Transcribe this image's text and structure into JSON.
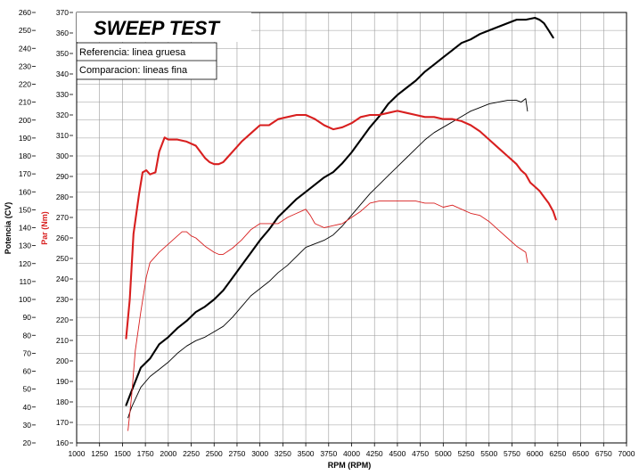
{
  "chart_data": {
    "type": "line",
    "title": "SWEEP TEST",
    "xlabel": "RPM (RPM)",
    "ylabel_left": "Potencia (CV)",
    "ylabel_right": "Par (Nm)",
    "xlim": [
      1000,
      7000
    ],
    "xticks": [
      1000,
      1250,
      1500,
      1750,
      2000,
      2250,
      2500,
      2750,
      3000,
      3250,
      3500,
      3750,
      4000,
      4250,
      4500,
      4750,
      5000,
      5250,
      5500,
      5750,
      6000,
      6250,
      6500,
      6750,
      7000
    ],
    "ylim_power": [
      20,
      260
    ],
    "yticks_power": [
      20,
      30,
      40,
      50,
      60,
      70,
      80,
      90,
      100,
      110,
      120,
      130,
      140,
      150,
      160,
      170,
      180,
      190,
      200,
      210,
      220,
      230,
      240,
      250,
      260
    ],
    "ylim_torque": [
      160,
      370
    ],
    "yticks_torque": [
      160,
      170,
      180,
      190,
      200,
      210,
      220,
      230,
      240,
      250,
      260,
      270,
      280,
      290,
      300,
      310,
      320,
      330,
      340,
      350,
      360,
      370
    ],
    "legend": [
      "Referencia: linea gruesa",
      "Comparacion: lineas fina"
    ],
    "grid": true,
    "colors": {
      "power": "#000000",
      "torque": "#d81f1f"
    },
    "series": [
      {
        "axis": "power",
        "weight": "thick",
        "x": [
          1540,
          1600,
          1700,
          1800,
          1900,
          2000,
          2100,
          2200,
          2300,
          2400,
          2500,
          2600,
          2700,
          2800,
          2900,
          3000,
          3100,
          3200,
          3300,
          3400,
          3500,
          3600,
          3700,
          3800,
          3900,
          4000,
          4100,
          4200,
          4300,
          4400,
          4500,
          4600,
          4700,
          4800,
          4900,
          5000,
          5100,
          5200,
          5300,
          5400,
          5500,
          5600,
          5700,
          5800,
          5900,
          6000,
          6050,
          6100,
          6150,
          6200
        ],
        "values": [
          41,
          49,
          62,
          67,
          75,
          79,
          84,
          88,
          93,
          96,
          100,
          105,
          112,
          119,
          126,
          133,
          139,
          146,
          151,
          156,
          160,
          164,
          168,
          171,
          176,
          182,
          189,
          196,
          202,
          209,
          214,
          218,
          222,
          227,
          231,
          235,
          239,
          243,
          245,
          248,
          250,
          252,
          254,
          256,
          256,
          257,
          256,
          254,
          250,
          246
        ]
      },
      {
        "axis": "power",
        "weight": "thin",
        "x": [
          1560,
          1600,
          1700,
          1800,
          1900,
          2000,
          2100,
          2200,
          2300,
          2400,
          2500,
          2600,
          2700,
          2800,
          2900,
          3000,
          3100,
          3200,
          3300,
          3400,
          3500,
          3600,
          3700,
          3800,
          3900,
          4000,
          4100,
          4200,
          4300,
          4400,
          4500,
          4600,
          4700,
          4800,
          4900,
          5000,
          5100,
          5200,
          5300,
          5400,
          5500,
          5600,
          5700,
          5800,
          5850,
          5900,
          5920
        ],
        "values": [
          34,
          40,
          51,
          57,
          61,
          65,
          70,
          74,
          77,
          79,
          82,
          85,
          90,
          96,
          102,
          106,
          110,
          115,
          119,
          124,
          129,
          131,
          133,
          136,
          141,
          147,
          153,
          159,
          164,
          169,
          174,
          179,
          184,
          189,
          193,
          196,
          199,
          202,
          205,
          207,
          209,
          210,
          211,
          211,
          210,
          212,
          205
        ]
      },
      {
        "axis": "torque",
        "weight": "thick",
        "x": [
          1540,
          1580,
          1620,
          1680,
          1720,
          1760,
          1800,
          1860,
          1900,
          1960,
          2000,
          2100,
          2200,
          2300,
          2400,
          2450,
          2500,
          2550,
          2600,
          2700,
          2800,
          2900,
          3000,
          3100,
          3200,
          3300,
          3400,
          3500,
          3600,
          3700,
          3800,
          3900,
          4000,
          4100,
          4200,
          4300,
          4400,
          4500,
          4600,
          4700,
          4800,
          4900,
          5000,
          5100,
          5200,
          5300,
          5400,
          5500,
          5600,
          5700,
          5800,
          5850,
          5900,
          5950,
          6000,
          6050,
          6100,
          6150,
          6200,
          6230
        ],
        "values": [
          211,
          230,
          262,
          281,
          292,
          293,
          291,
          292,
          302,
          309,
          308,
          308,
          307,
          305,
          299,
          297,
          296,
          296,
          297,
          302,
          307,
          311,
          315,
          315,
          318,
          319,
          320,
          320,
          318,
          315,
          313,
          314,
          316,
          319,
          320,
          320,
          321,
          322,
          321,
          320,
          319,
          319,
          318,
          318,
          317,
          315,
          312,
          308,
          304,
          300,
          296,
          293,
          291,
          287,
          285,
          283,
          280,
          277,
          273,
          269
        ]
      },
      {
        "axis": "torque",
        "weight": "thin",
        "x": [
          1560,
          1600,
          1640,
          1700,
          1760,
          1800,
          1900,
          2000,
          2100,
          2150,
          2200,
          2250,
          2300,
          2400,
          2500,
          2550,
          2600,
          2700,
          2800,
          2900,
          3000,
          3100,
          3200,
          3300,
          3400,
          3500,
          3550,
          3600,
          3700,
          3800,
          3900,
          4000,
          4100,
          4200,
          4300,
          4400,
          4500,
          4600,
          4700,
          4800,
          4900,
          5000,
          5100,
          5200,
          5300,
          5400,
          5500,
          5600,
          5700,
          5800,
          5900,
          5920
        ],
        "values": [
          166,
          183,
          205,
          224,
          241,
          248,
          253,
          257,
          261,
          263,
          263,
          261,
          260,
          256,
          253,
          252,
          252,
          255,
          259,
          264,
          267,
          267,
          267,
          270,
          272,
          274,
          271,
          267,
          265,
          266,
          267,
          270,
          273,
          277,
          278,
          278,
          278,
          278,
          278,
          277,
          277,
          275,
          276,
          274,
          272,
          271,
          268,
          264,
          260,
          256,
          253,
          248
        ]
      }
    ]
  }
}
